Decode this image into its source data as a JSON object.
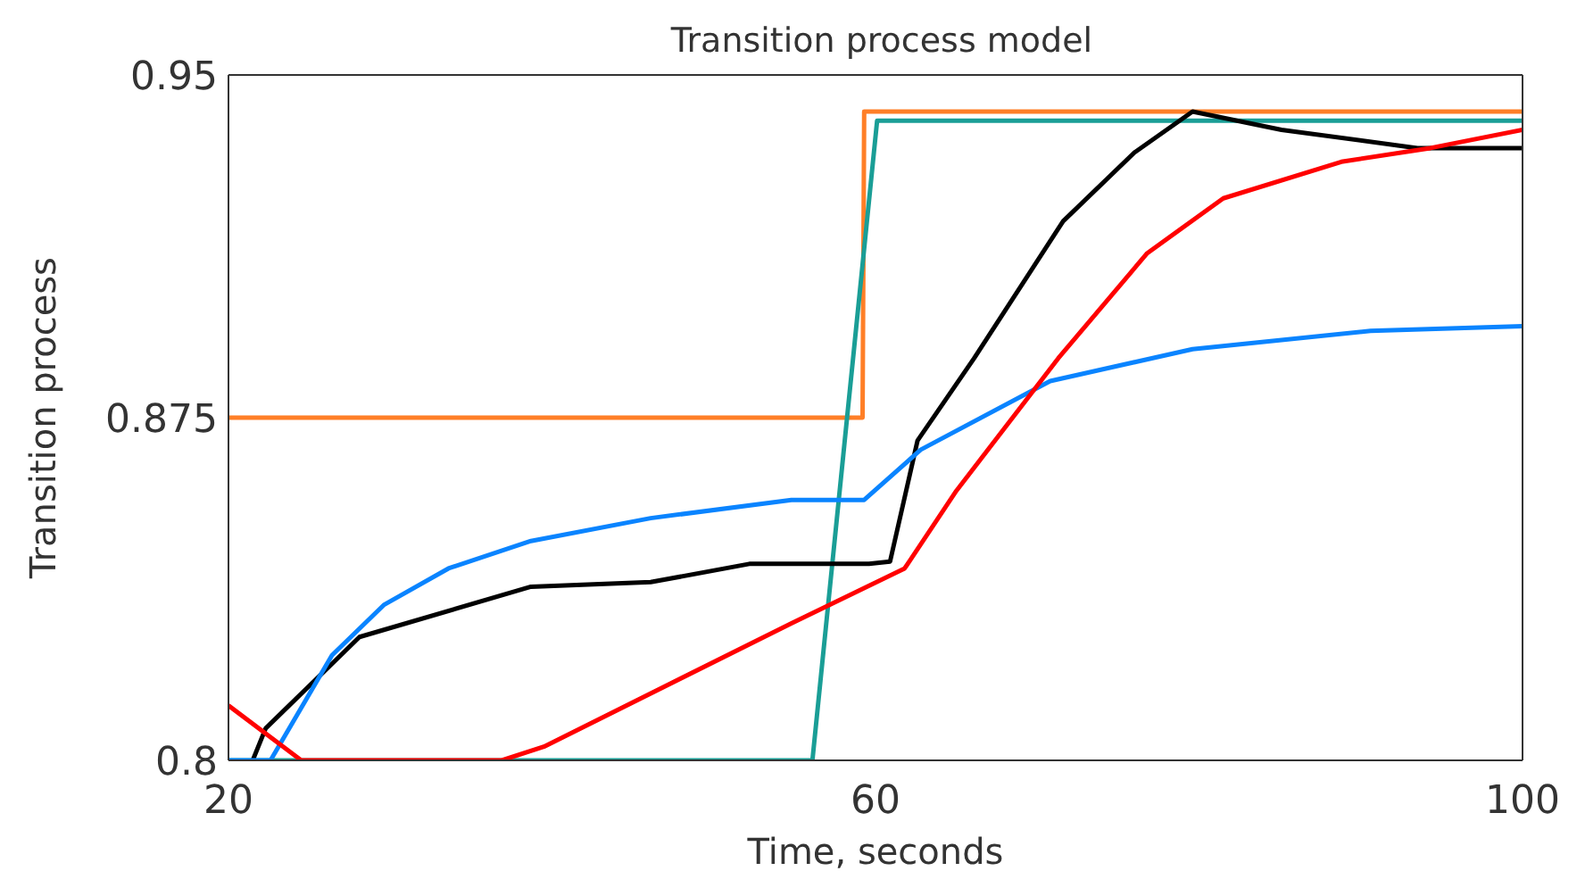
{
  "chart_data": {
    "type": "line",
    "title": "Transition process model",
    "xlabel": "Time, seconds",
    "ylabel": "Transition process",
    "xlim": [
      20,
      100
    ],
    "xticks": [
      20,
      60,
      100
    ],
    "ylim": [
      0.8,
      0.95
    ],
    "yticks": [
      0.8,
      0.875,
      0.95
    ],
    "grid": false,
    "legend": false,
    "marker": "none",
    "line_style": "solid",
    "series": [
      {
        "color": "#ff7f27",
        "x": [
          20,
          59.2,
          59.3,
          100
        ],
        "values": [
          0.875,
          0.875,
          0.942,
          0.942
        ]
      },
      {
        "color": "#1a9e96",
        "x": [
          20,
          56.1,
          60.1,
          100
        ],
        "values": [
          0.8,
          0.8,
          0.94,
          0.94
        ]
      },
      {
        "color": "#000000",
        "x": [
          21.5,
          22.3,
          28.1,
          38.7,
          46.1,
          52.2,
          59.6,
          60.9,
          62.6,
          66.1,
          71.6,
          76,
          79.6,
          85.1,
          93.5,
          100
        ],
        "values": [
          0.8,
          0.807,
          0.827,
          0.838,
          0.839,
          0.843,
          0.843,
          0.8435,
          0.87,
          0.888,
          0.918,
          0.933,
          0.942,
          0.938,
          0.934,
          0.934
        ]
      },
      {
        "color": "#0a84ff",
        "x": [
          20,
          22.6,
          26.4,
          29.6,
          33.6,
          38.7,
          46.1,
          54.8,
          59.3,
          62.8,
          70.8,
          79.6,
          90.6,
          100
        ],
        "values": [
          0.8,
          0.8,
          0.823,
          0.834,
          0.842,
          0.848,
          0.853,
          0.857,
          0.857,
          0.868,
          0.883,
          0.89,
          0.894,
          0.895
        ]
      },
      {
        "color": "#ff0000",
        "x": [
          20,
          24.5,
          36.9,
          39.5,
          54.8,
          61.8,
          65,
          71.3,
          76.8,
          81.5,
          88.8,
          94.3,
          100
        ],
        "values": [
          0.812,
          0.8,
          0.8,
          0.803,
          0.83,
          0.842,
          0.859,
          0.888,
          0.911,
          0.923,
          0.931,
          0.934,
          0.938
        ]
      }
    ]
  }
}
